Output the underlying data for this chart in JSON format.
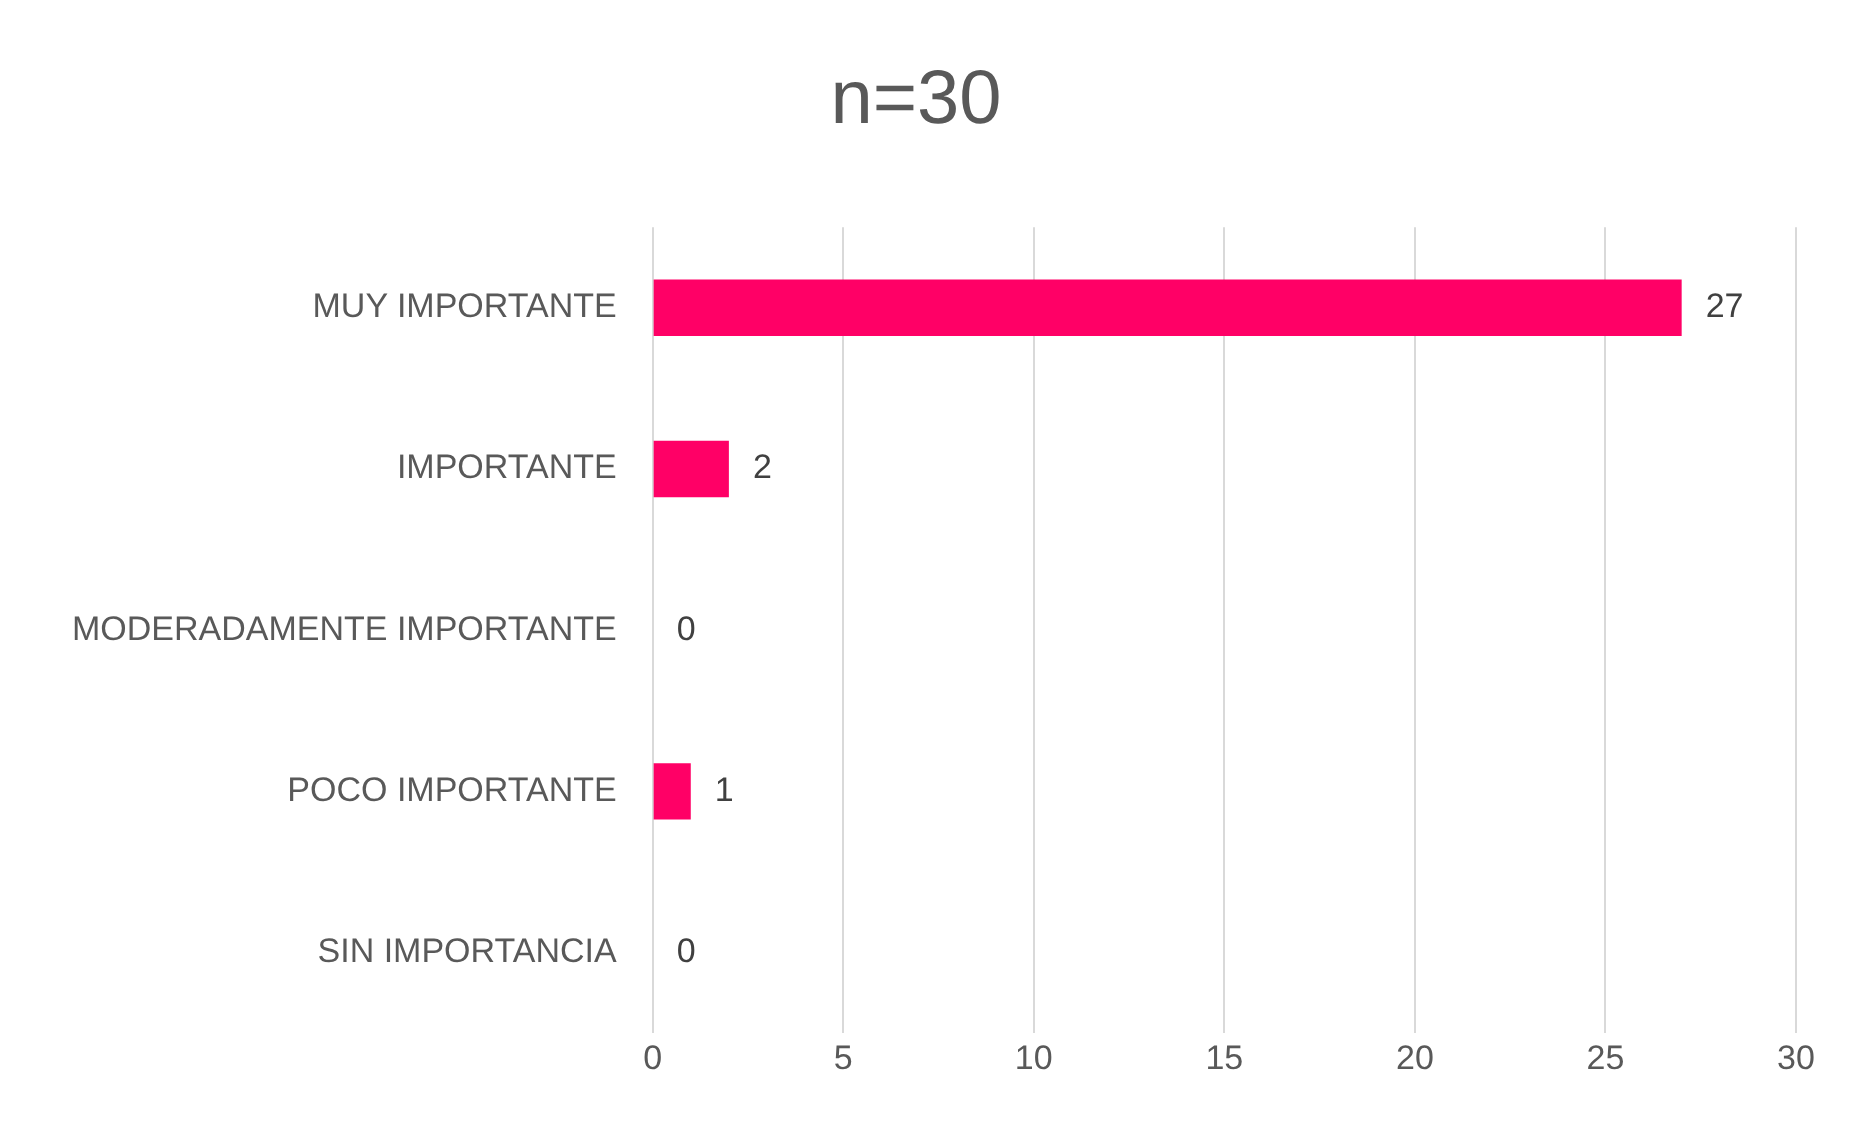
{
  "chart_data": {
    "type": "bar",
    "orientation": "horizontal",
    "title": "n=30",
    "categories": [
      "MUY IMPORTANTE",
      "IMPORTANTE",
      "MODERADAMENTE IMPORTANTE",
      "POCO IMPORTANTE",
      "SIN IMPORTANCIA"
    ],
    "values": [
      27,
      2,
      0,
      1,
      0
    ],
    "color": "#ff0066",
    "xlim": [
      0,
      30
    ],
    "xticks": [
      0,
      5,
      10,
      15,
      20,
      25,
      30
    ],
    "grid": "x",
    "legend": false,
    "data_labels": true
  }
}
